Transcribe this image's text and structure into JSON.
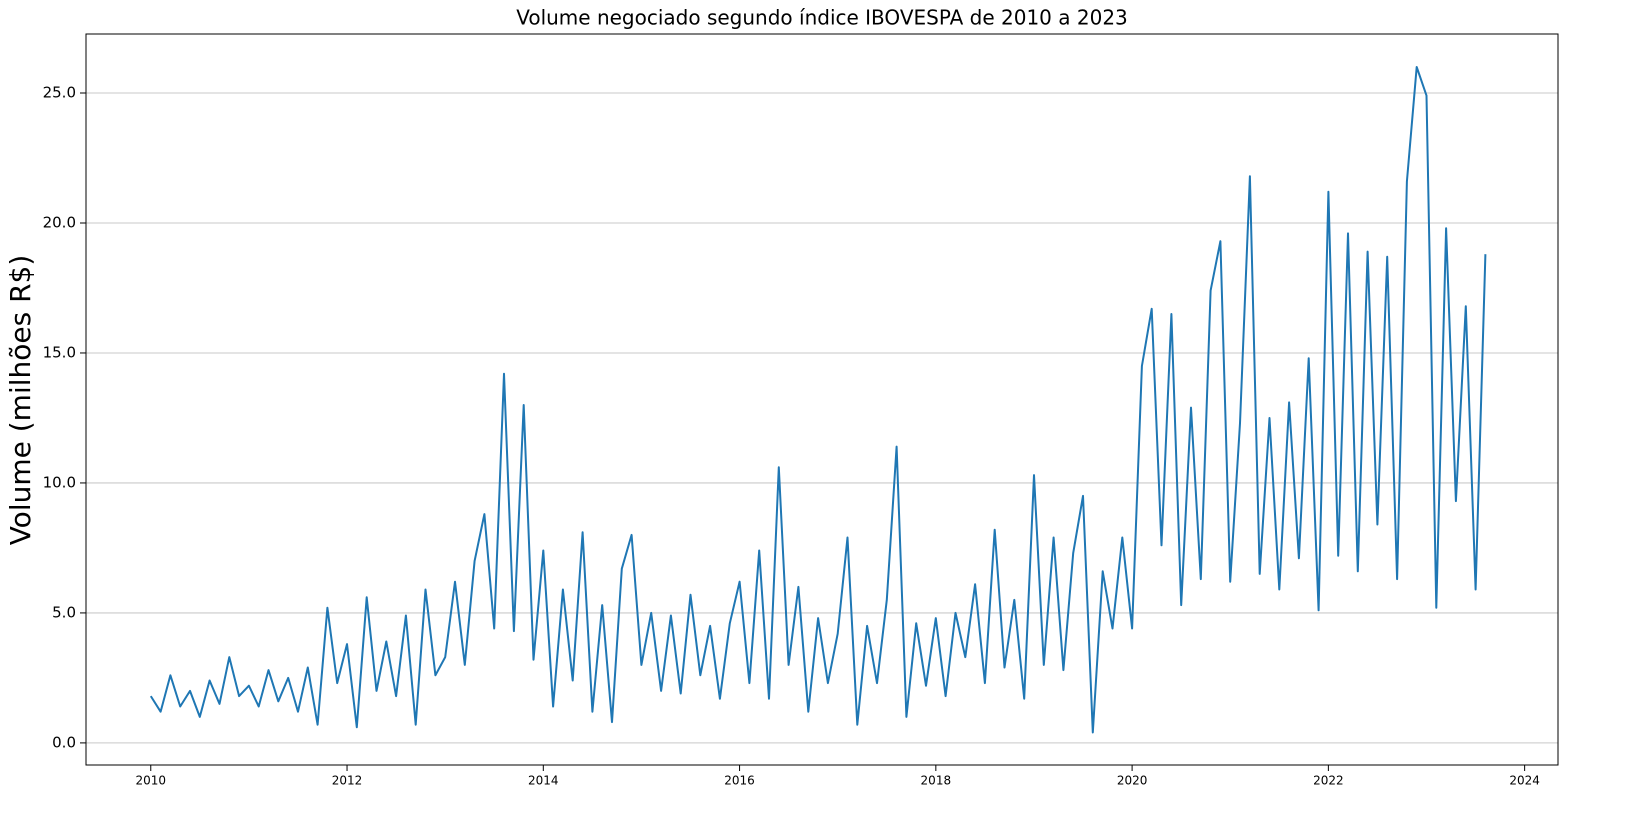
{
  "chart_data": {
    "type": "line",
    "title": "Volume negociado segundo índice IBOVESPA de 2010 a 2023",
    "y_label": "Volume (milhões R$)",
    "x": [
      2010.0,
      2010.1,
      2010.2,
      2010.3,
      2010.4,
      2010.5,
      2010.6,
      2010.7,
      2010.8,
      2010.9,
      2011.0,
      2011.1,
      2011.2,
      2011.3,
      2011.4,
      2011.5,
      2011.6,
      2011.7,
      2011.8,
      2011.9,
      2012.0,
      2012.1,
      2012.2,
      2012.3,
      2012.4,
      2012.5,
      2012.6,
      2012.7,
      2012.8,
      2012.9,
      2013.0,
      2013.1,
      2013.2,
      2013.3,
      2013.4,
      2013.5,
      2013.6,
      2013.7,
      2013.8,
      2013.9,
      2014.0,
      2014.1,
      2014.2,
      2014.3,
      2014.4,
      2014.5,
      2014.6,
      2014.7,
      2014.8,
      2014.9,
      2015.0,
      2015.1,
      2015.2,
      2015.3,
      2015.4,
      2015.5,
      2015.6,
      2015.7,
      2015.8,
      2015.9,
      2016.0,
      2016.1,
      2016.2,
      2016.3,
      2016.4,
      2016.5,
      2016.6,
      2016.7,
      2016.8,
      2016.9,
      2017.0,
      2017.1,
      2017.2,
      2017.3,
      2017.4,
      2017.5,
      2017.6,
      2017.7,
      2017.8,
      2017.9,
      2018.0,
      2018.1,
      2018.2,
      2018.3,
      2018.4,
      2018.5,
      2018.6,
      2018.7,
      2018.8,
      2018.9,
      2019.0,
      2019.1,
      2019.2,
      2019.3,
      2019.4,
      2019.5,
      2019.6,
      2019.7,
      2019.8,
      2019.9,
      2020.0,
      2020.1,
      2020.2,
      2020.3,
      2020.4,
      2020.5,
      2020.6,
      2020.7,
      2020.8,
      2020.9,
      2021.0,
      2021.1,
      2021.2,
      2021.3,
      2021.4,
      2021.5,
      2021.6,
      2021.7,
      2021.8,
      2021.9,
      2022.0,
      2022.1,
      2022.2,
      2022.3,
      2022.4,
      2022.5,
      2022.6,
      2022.7,
      2022.8,
      2022.9,
      2023.0,
      2023.1,
      2023.2,
      2023.3,
      2023.4,
      2023.5,
      2023.6
    ],
    "series": [
      {
        "color": "#1f77b4",
        "values": [
          1.8,
          1.2,
          2.6,
          1.4,
          2.0,
          1.0,
          2.4,
          1.5,
          3.3,
          1.8,
          2.2,
          1.4,
          2.8,
          1.6,
          2.5,
          1.2,
          2.9,
          0.7,
          5.2,
          2.3,
          3.8,
          0.6,
          5.6,
          2.0,
          3.9,
          1.8,
          4.9,
          0.7,
          5.9,
          2.6,
          3.3,
          6.2,
          3.0,
          7.0,
          8.8,
          4.4,
          14.2,
          4.3,
          13.0,
          3.2,
          7.4,
          1.4,
          5.9,
          2.4,
          8.1,
          1.2,
          5.3,
          0.8,
          6.7,
          8.0,
          3.0,
          5.0,
          2.0,
          4.9,
          1.9,
          5.7,
          2.6,
          4.5,
          1.7,
          4.6,
          6.2,
          2.3,
          7.4,
          1.7,
          10.6,
          3.0,
          6.0,
          1.2,
          4.8,
          2.3,
          4.2,
          7.9,
          0.7,
          4.5,
          2.3,
          5.5,
          11.4,
          1.0,
          4.6,
          2.2,
          4.8,
          1.8,
          5.0,
          3.3,
          6.1,
          2.3,
          8.2,
          2.9,
          5.5,
          1.7,
          10.3,
          3.0,
          7.9,
          2.8,
          7.3,
          9.5,
          0.4,
          6.6,
          4.4,
          7.9,
          4.4,
          14.5,
          16.7,
          7.6,
          16.5,
          5.3,
          12.9,
          6.3,
          17.4,
          19.3,
          6.2,
          12.3,
          21.8,
          6.5,
          12.5,
          5.9,
          13.1,
          7.1,
          14.8,
          5.1,
          21.2,
          7.2,
          19.6,
          6.6,
          18.9,
          8.4,
          18.7,
          6.3,
          21.6,
          26.0,
          24.9,
          5.2,
          19.8,
          9.3,
          16.8,
          5.9,
          18.8
        ]
      }
    ],
    "xlim": [
      2009.34,
      2024.34
    ],
    "xticks": [
      2010,
      2012,
      2014,
      2016,
      2018,
      2020,
      2022,
      2024
    ],
    "ylim": [
      -0.85,
      27.27
    ],
    "yticks": [
      {
        "value": 0,
        "label": "0.0"
      },
      {
        "value": 5,
        "label": "5.0"
      },
      {
        "value": 10,
        "label": "10.0"
      },
      {
        "value": 15,
        "label": "15.0"
      },
      {
        "value": 20,
        "label": "20.0"
      },
      {
        "value": 25,
        "label": "25.0"
      }
    ],
    "grid": true
  }
}
